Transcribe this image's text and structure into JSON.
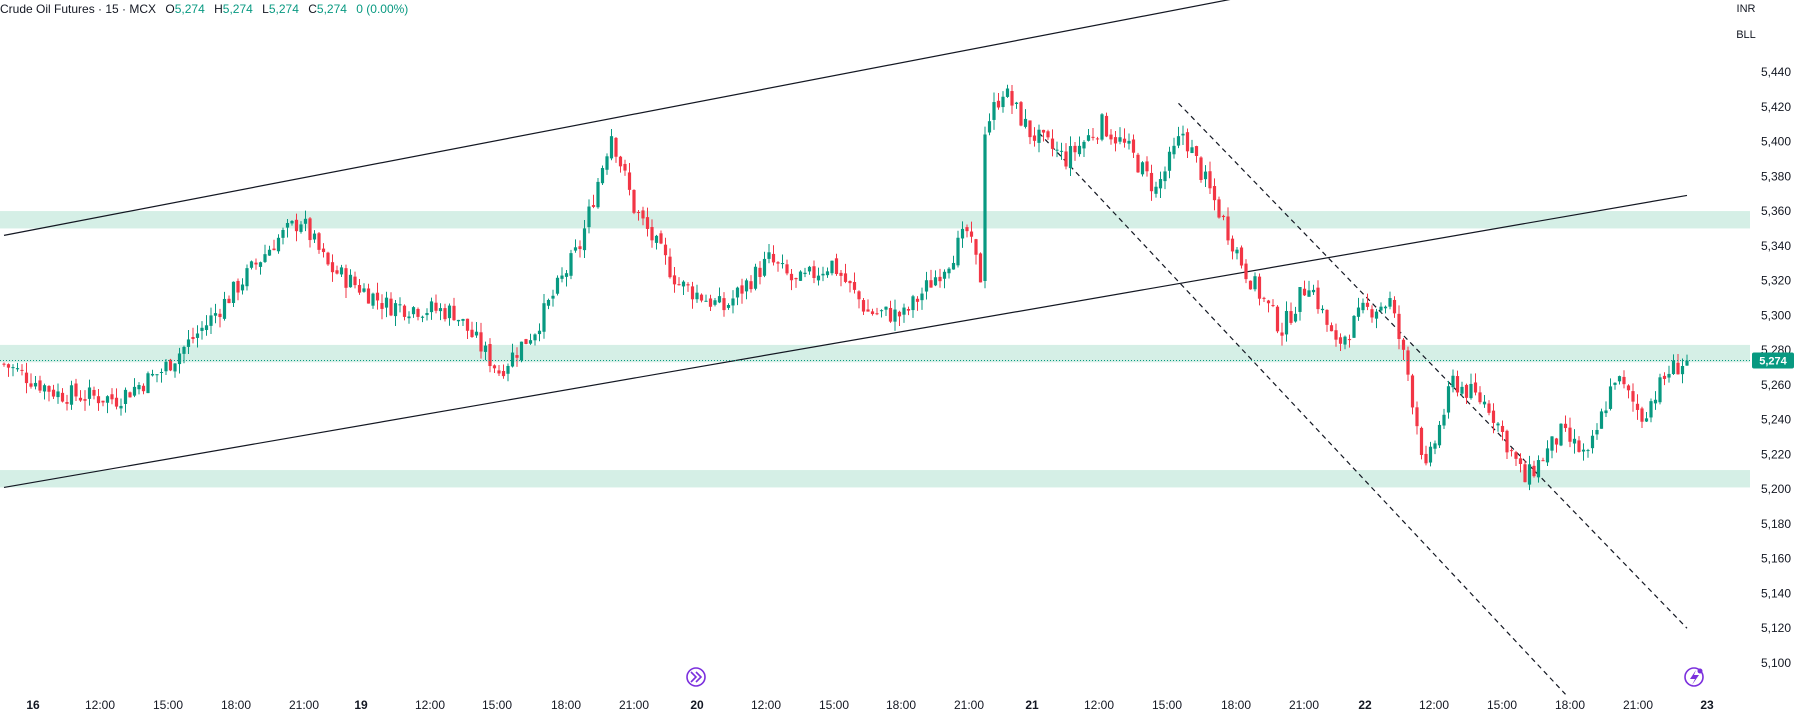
{
  "legend": {
    "symbol": "Crude Oil Futures · 15 · MCX",
    "open_label": "O",
    "open": "5,274",
    "high_label": "H",
    "high": "5,274",
    "low_label": "L",
    "low": "5,274",
    "close_label": "C",
    "close": "5,274",
    "change": "0 (0.00%)"
  },
  "currency": "INR",
  "unit": "BLL",
  "colors": {
    "up": "#089981",
    "down": "#F23645",
    "zone": "#d5efe6",
    "price_tag": "#089981",
    "event_icon": "#7b2fdd"
  },
  "icons": [
    "fast-forward-icon",
    "flash-icon"
  ],
  "chart_data": {
    "type": "candlestick",
    "interval": "15",
    "ylim": [
      5090,
      5460
    ],
    "y_ticks": [
      5100,
      5120,
      5140,
      5160,
      5180,
      5200,
      5220,
      5240,
      5260,
      5280,
      5300,
      5320,
      5340,
      5360,
      5380,
      5400,
      5420,
      5440
    ],
    "y_tick_labels": [
      "5,100",
      "5,120",
      "5,140",
      "5,160",
      "5,180",
      "5,200",
      "5,220",
      "5,240",
      "5,260",
      "5,280",
      "5,300",
      "5,320",
      "5,340",
      "5,360",
      "5,380",
      "5,400",
      "5,420",
      "5,440"
    ],
    "x_tick_labels": [
      "16",
      "12:00",
      "15:00",
      "18:00",
      "21:00",
      "19",
      "12:00",
      "15:00",
      "18:00",
      "21:00",
      "20",
      "12:00",
      "15:00",
      "18:00",
      "21:00",
      "21",
      "12:00",
      "15:00",
      "18:00",
      "21:00",
      "22",
      "12:00",
      "15:00",
      "18:00",
      "21:00",
      "23"
    ],
    "x_tick_bold": [
      true,
      false,
      false,
      false,
      false,
      true,
      false,
      false,
      false,
      false,
      true,
      false,
      false,
      false,
      false,
      true,
      false,
      false,
      false,
      false,
      true,
      false,
      false,
      false,
      false,
      true
    ],
    "last_price": 5274,
    "last_price_label": "5,274",
    "zones": [
      {
        "low": 5350,
        "high": 5360
      },
      {
        "low": 5273,
        "high": 5283
      },
      {
        "low": 5201,
        "high": 5211
      }
    ],
    "anchors": [
      {
        "bar": 0,
        "price": 5272
      },
      {
        "bar": 12,
        "price": 5255
      },
      {
        "bar": 25,
        "price": 5252
      },
      {
        "bar": 35,
        "price": 5268
      },
      {
        "bar": 45,
        "price": 5295
      },
      {
        "bar": 60,
        "price": 5342
      },
      {
        "bar": 66,
        "price": 5355
      },
      {
        "bar": 72,
        "price": 5328
      },
      {
        "bar": 85,
        "price": 5306
      },
      {
        "bar": 100,
        "price": 5302
      },
      {
        "bar": 110,
        "price": 5268
      },
      {
        "bar": 118,
        "price": 5292
      },
      {
        "bar": 128,
        "price": 5340
      },
      {
        "bar": 135,
        "price": 5405
      },
      {
        "bar": 140,
        "price": 5362
      },
      {
        "bar": 150,
        "price": 5318
      },
      {
        "bar": 160,
        "price": 5304
      },
      {
        "bar": 170,
        "price": 5332
      },
      {
        "bar": 176,
        "price": 5318
      },
      {
        "bar": 184,
        "price": 5330
      },
      {
        "bar": 192,
        "price": 5302
      },
      {
        "bar": 200,
        "price": 5300
      },
      {
        "bar": 210,
        "price": 5332
      },
      {
        "bar": 214,
        "price": 5348
      },
      {
        "bar": 217,
        "price": 5322
      },
      {
        "bar": 218,
        "price": 5408
      },
      {
        "bar": 222,
        "price": 5430
      },
      {
        "bar": 228,
        "price": 5405
      },
      {
        "bar": 236,
        "price": 5390
      },
      {
        "bar": 244,
        "price": 5410
      },
      {
        "bar": 250,
        "price": 5395
      },
      {
        "bar": 256,
        "price": 5372
      },
      {
        "bar": 262,
        "price": 5405
      },
      {
        "bar": 270,
        "price": 5360
      },
      {
        "bar": 276,
        "price": 5325
      },
      {
        "bar": 284,
        "price": 5292
      },
      {
        "bar": 290,
        "price": 5320
      },
      {
        "bar": 296,
        "price": 5282
      },
      {
        "bar": 302,
        "price": 5302
      },
      {
        "bar": 308,
        "price": 5308
      },
      {
        "bar": 312,
        "price": 5266
      },
      {
        "bar": 316,
        "price": 5210
      },
      {
        "bar": 322,
        "price": 5262
      },
      {
        "bar": 330,
        "price": 5248
      },
      {
        "bar": 338,
        "price": 5205
      },
      {
        "bar": 346,
        "price": 5232
      },
      {
        "bar": 352,
        "price": 5218
      },
      {
        "bar": 358,
        "price": 5265
      },
      {
        "bar": 364,
        "price": 5242
      },
      {
        "bar": 370,
        "price": 5268
      },
      {
        "bar": 374,
        "price": 5274
      }
    ],
    "trendlines": [
      {
        "style": "solid",
        "from": {
          "bar": 0,
          "price": 5346
        },
        "to": {
          "bar": 273,
          "price": 5482
        }
      },
      {
        "style": "solid",
        "from": {
          "bar": 0,
          "price": 5201
        },
        "to": {
          "bar": 374,
          "price": 5369
        }
      },
      {
        "style": "dashed",
        "from": {
          "bar": 230,
          "price": 5405
        },
        "to": {
          "bar": 347,
          "price": 5082
        }
      },
      {
        "style": "dashed",
        "from": {
          "bar": 261,
          "price": 5422
        },
        "to": {
          "bar": 374,
          "price": 5120
        }
      }
    ]
  }
}
